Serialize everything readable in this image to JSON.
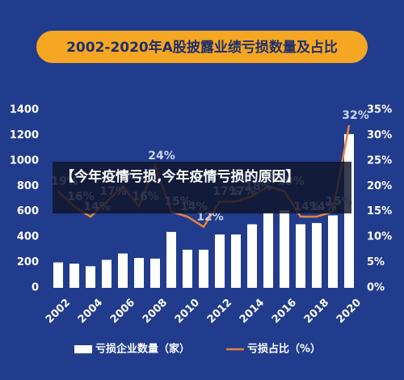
{
  "chart_data": {
    "type": "bar",
    "title": "2002-2020年A股披露业绩亏损数量及占比",
    "categories": [
      "2002",
      null,
      "2004",
      null,
      "2006",
      null,
      "2008",
      null,
      "2010",
      null,
      "2012",
      null,
      "2014",
      null,
      "2016",
      null,
      "2018",
      null,
      "2020"
    ],
    "series": [
      {
        "name": "亏损企业数量（家）",
        "type": "bar",
        "color": "#ffffff",
        "values": [
          200,
          190,
          170,
          220,
          270,
          235,
          230,
          440,
          300,
          300,
          420,
          420,
          500,
          590,
          610,
          500,
          510,
          570,
          1210
        ]
      },
      {
        "name": "亏损占比（%）",
        "type": "line",
        "axis": "y2",
        "color": "#e8823a",
        "values": [
          19,
          16,
          14,
          17,
          20,
          16,
          24,
          15,
          14,
          12,
          17,
          17,
          18,
          20,
          19,
          14,
          14,
          15,
          32
        ],
        "value_labels": [
          "19%",
          "16%",
          "14%",
          "17%",
          "20%",
          "16%",
          "24%",
          "15%",
          "14%",
          "12%",
          "17%",
          "17%",
          "18%",
          "20%",
          "19%",
          "14%",
          "14%",
          "15%",
          "32%"
        ]
      }
    ],
    "ylim": [
      0,
      1400
    ],
    "yticks": [
      0,
      200,
      400,
      600,
      800,
      1000,
      1200,
      1400
    ],
    "y2lim": [
      0,
      35
    ],
    "y2ticks": [
      {
        "value": 0,
        "label": "0%"
      },
      {
        "value": 5,
        "label": "5%"
      },
      {
        "value": 10,
        "label": "10%"
      },
      {
        "value": 15,
        "label": "15%"
      },
      {
        "value": 20,
        "label": "20%"
      },
      {
        "value": 25,
        "label": "25%"
      },
      {
        "value": 30,
        "label": "30%"
      },
      {
        "value": 35,
        "label": "35%"
      }
    ],
    "legend": "bottom"
  },
  "overlay": {
    "text": "【今年疫情亏损,今年疫情亏损的原因】"
  }
}
